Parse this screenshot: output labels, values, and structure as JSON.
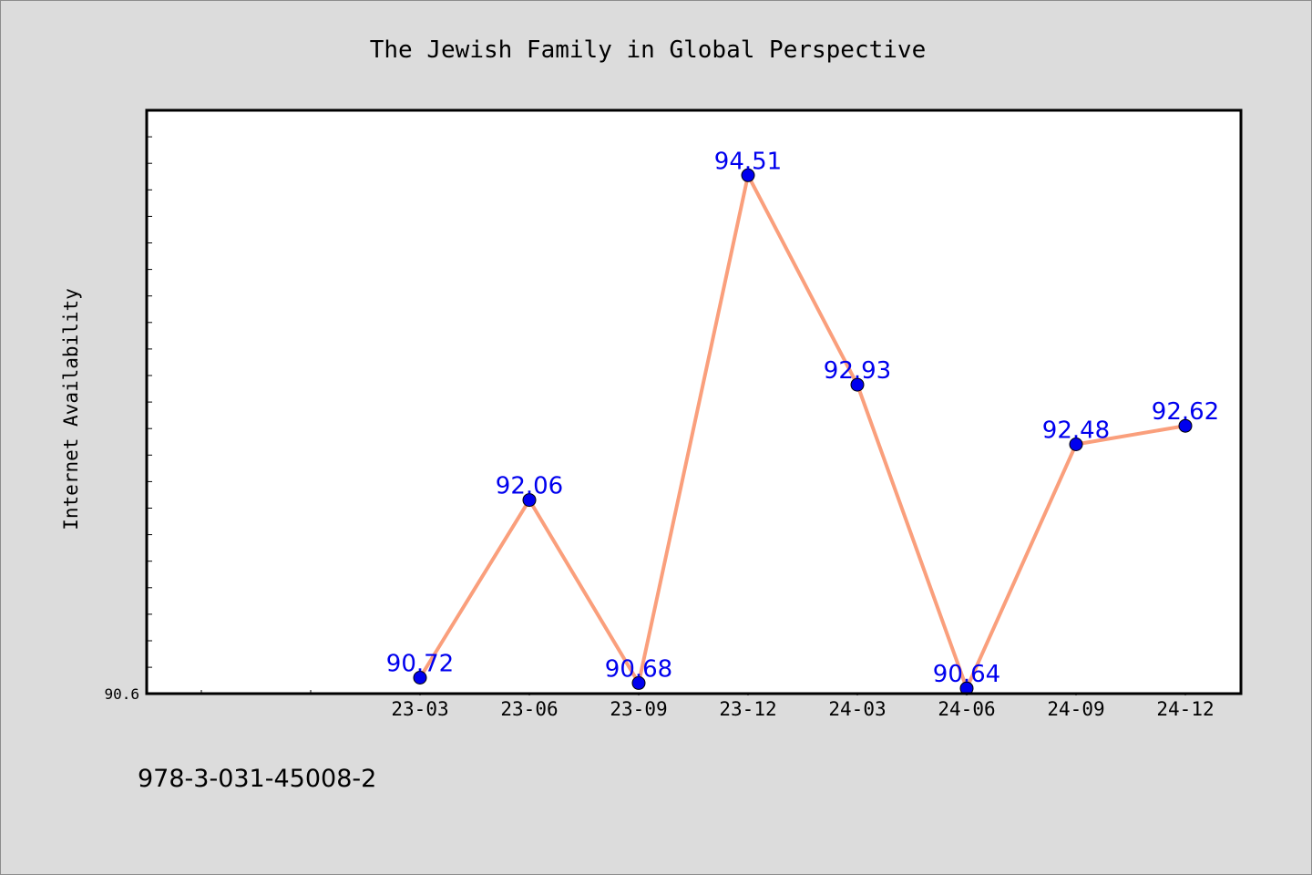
{
  "chart_data": {
    "type": "line",
    "title": "The Jewish Family in Global Perspective",
    "ylabel": "Internet Availability",
    "xlabel": "",
    "categories": [
      "23-03",
      "23-06",
      "23-09",
      "23-12",
      "24-03",
      "24-06",
      "24-09",
      "24-12"
    ],
    "series": [
      {
        "values": [
          90.72,
          92.06,
          90.68,
          94.51,
          92.93,
          90.64,
          92.48,
          92.62
        ],
        "data_labels": [
          "90.72",
          "92.06",
          "90.68",
          "94.51",
          "92.93",
          "90.64",
          "92.48",
          "92.62"
        ]
      }
    ],
    "ylim": [
      90.6,
      95.0
    ],
    "y_tick_labels": [
      "90.6"
    ],
    "grid": false,
    "legend": "none",
    "colors": {
      "line": "#fa9f7c",
      "marker": "#0000ee",
      "label": "#0000ee",
      "plot_background": "#ffffff",
      "page_background": "#dcdcdc"
    }
  },
  "footnote": "978-3-031-45008-2"
}
